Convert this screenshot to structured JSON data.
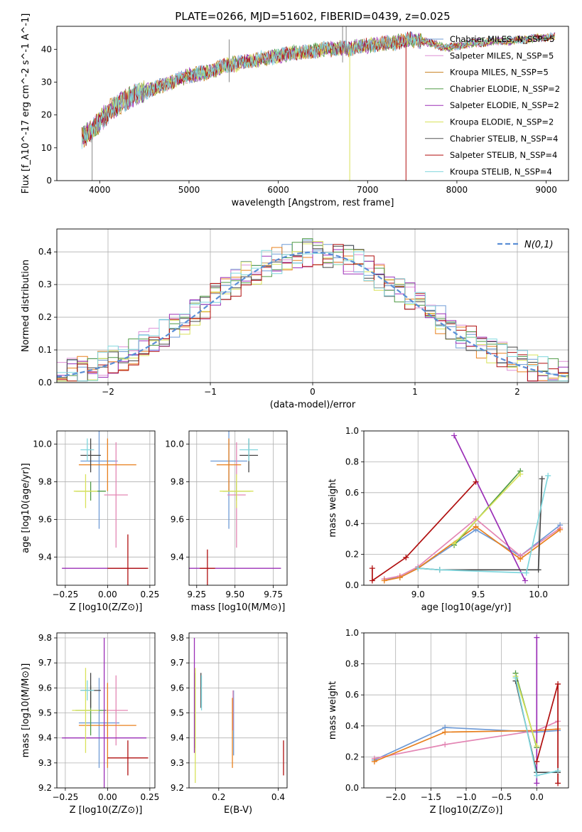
{
  "title": "PLATE=0266, MJD=51602, FIBERID=0439, z=0.025",
  "colors": [
    "#6f9bd6",
    "#dd8fd6",
    "#c8801f",
    "#4f9a45",
    "#9b2fb7",
    "#d8e25a",
    "#444444",
    "#b00f0f",
    "#7fd6dd",
    "#e8801e",
    "#e386b4"
  ],
  "chart_data": [
    {
      "id": "spectrum",
      "type": "line",
      "xlabel": "wavelength [Angstrom, rest frame]",
      "ylabel": "Flux [f_λ10^-17 erg cm^-2 s^-1 A^-1]",
      "xlim": [
        3520,
        9250
      ],
      "ylim": [
        0,
        47
      ],
      "xticks": [
        4000,
        5000,
        6000,
        7000,
        8000,
        9000
      ],
      "yticks": [
        0,
        10,
        20,
        30,
        40
      ],
      "grid": false,
      "legend_position": "right",
      "legend": [
        "Chabrier MILES, N_SSP=5",
        "Salpeter MILES, N_SSP=5",
        "Kroupa MILES, N_SSP=5",
        "Chabrier ELODIE, N_SSP=2",
        "Salpeter ELODIE, N_SSP=2",
        "Kroupa ELODIE, N_SSP=2",
        "Chabrier STELIB, N_SSP=4",
        "Salpeter STELIB, N_SSP=4",
        "Kroupa STELIB, N_SSP=4"
      ],
      "series_x": [
        3800,
        3900,
        4000,
        4100,
        4200,
        4300,
        4400,
        4500,
        4600,
        4700,
        4800,
        4900,
        5000,
        5100,
        5200,
        5300,
        5400,
        5500,
        5600,
        5700,
        5800,
        5900,
        6000,
        6100,
        6200,
        6300,
        6400,
        6500,
        6600,
        6700,
        6800,
        6900,
        7000,
        7100,
        7200,
        7300,
        7400,
        7500,
        7600,
        7700,
        7800,
        7900,
        8000,
        8100,
        8200,
        8300,
        8400,
        8500,
        8600,
        8700,
        8800,
        8900,
        9000,
        9100
      ],
      "series_y": [
        13,
        15,
        18,
        21,
        23,
        25,
        26,
        27,
        28,
        29,
        30,
        31,
        32,
        32.5,
        33,
        34,
        35,
        35.5,
        36,
        36.5,
        37,
        37.5,
        38,
        38.5,
        39,
        39,
        39.5,
        40,
        40,
        40.5,
        40,
        41,
        41,
        41.5,
        42,
        42,
        42.5,
        43,
        42.5,
        42,
        41,
        40.5,
        41,
        41.5,
        42,
        42,
        42.5,
        42.5,
        42.5,
        43,
        43,
        43.5,
        43.5,
        44
      ],
      "annotations_spikes": [
        {
          "x": 5450,
          "y_top": 43,
          "y_bottom": 30
        },
        {
          "x": 6720,
          "y_top": 47,
          "y_bottom": 36
        },
        {
          "x": 6760,
          "y_top": 47,
          "y_bottom": 38
        },
        {
          "x": 6800,
          "y_top": 40,
          "y_bottom": 0
        },
        {
          "x": 7430,
          "y_top": 42,
          "y_bottom": 0
        },
        {
          "x": 3915,
          "y_top": 14,
          "y_bottom": 0
        }
      ]
    },
    {
      "id": "residuals",
      "type": "line",
      "xlabel": "(data-model)/error",
      "ylabel": "Normed distribution",
      "xlim": [
        -2.5,
        2.5
      ],
      "ylim": [
        0,
        0.47
      ],
      "xticks": [
        -2,
        -1,
        0,
        1,
        2
      ],
      "yticks": [
        0.0,
        0.1,
        0.2,
        0.3,
        0.4
      ],
      "grid": true,
      "legend_position": "top-right",
      "legend": [
        "N(0,1)"
      ]
    },
    {
      "id": "age_vs_Z",
      "type": "scatter",
      "xlabel": "Z [log10(Z/Z⊙)]",
      "ylabel": "age  [log10(age/yr)]",
      "xlim": [
        -0.3,
        0.28
      ],
      "ylim": [
        9.25,
        10.07
      ],
      "xticks": [
        -0.25,
        0.0,
        0.25
      ],
      "yticks": [
        9.4,
        9.6,
        9.8,
        10.0
      ],
      "grid": true,
      "points": [
        {
          "x": -0.05,
          "y": 9.91,
          "xerr": 0.11,
          "yerr": 0.36,
          "color": "#6f9bd6"
        },
        {
          "x": 0.05,
          "y": 9.73,
          "xerr": 0.07,
          "yerr": 0.28,
          "color": "#e386b4"
        },
        {
          "x": 0.0,
          "y": 9.89,
          "xerr": 0.17,
          "yerr": 0.14,
          "color": "#e8801e"
        },
        {
          "x": -0.1,
          "y": 9.75,
          "xerr": 0.09,
          "yerr": 0.05,
          "color": "#4f9a45"
        },
        {
          "x": -0.02,
          "y": 9.34,
          "xerr": 0.25,
          "yerr": 0.0,
          "color": "#9b2fb7"
        },
        {
          "x": -0.13,
          "y": 9.75,
          "xerr": 0.07,
          "yerr": 0.09,
          "color": "#d8e25a"
        },
        {
          "x": -0.1,
          "y": 9.94,
          "xerr": 0.06,
          "yerr": 0.09,
          "color": "#444444"
        },
        {
          "x": 0.12,
          "y": 9.34,
          "xerr": 0.12,
          "yerr": 0.18,
          "color": "#b00f0f"
        },
        {
          "x": -0.12,
          "y": 9.97,
          "xerr": 0.04,
          "yerr": 0.06,
          "color": "#7fd6dd"
        }
      ]
    },
    {
      "id": "age_vs_mass",
      "type": "scatter",
      "xlabel": "mass [log10(M/M⊙)]",
      "ylabel": "",
      "xlim": [
        9.2,
        9.84
      ],
      "ylim": [
        9.25,
        10.07
      ],
      "xticks": [
        9.25,
        9.5,
        9.75
      ],
      "yticks": [
        9.4,
        9.6,
        9.8,
        10.0
      ],
      "grid": true,
      "points": [
        {
          "x": 9.46,
          "y": 9.91,
          "xerr": 0.12,
          "yerr": 0.36,
          "color": "#6f9bd6"
        },
        {
          "x": 9.51,
          "y": 9.73,
          "xerr": 0.06,
          "yerr": 0.28,
          "color": "#e386b4"
        },
        {
          "x": 9.46,
          "y": 9.89,
          "xerr": 0.08,
          "yerr": 0.14,
          "color": "#e8801e"
        },
        {
          "x": 9.51,
          "y": 9.75,
          "xerr": 0.09,
          "yerr": 0.05,
          "color": "#4f9a45"
        },
        {
          "x": 9.4,
          "y": 9.34,
          "xerr": 0.4,
          "yerr": 0.0,
          "color": "#9b2fb7"
        },
        {
          "x": 9.51,
          "y": 9.75,
          "xerr": 0.11,
          "yerr": 0.09,
          "color": "#d8e25a"
        },
        {
          "x": 9.59,
          "y": 9.94,
          "xerr": 0.06,
          "yerr": 0.09,
          "color": "#444444"
        },
        {
          "x": 9.32,
          "y": 9.34,
          "xerr": 0.05,
          "yerr": 0.1,
          "color": "#b00f0f"
        },
        {
          "x": 9.59,
          "y": 9.97,
          "xerr": 0.06,
          "yerr": 0.06,
          "color": "#7fd6dd"
        }
      ]
    },
    {
      "id": "weight_vs_age",
      "type": "line",
      "xlabel": "age  [log10(age/yr)]",
      "ylabel": "mass weight",
      "xlim": [
        8.55,
        10.25
      ],
      "ylim": [
        0,
        1.0
      ],
      "xticks": [
        9.0,
        9.5,
        10.0
      ],
      "yticks": [
        0.0,
        0.2,
        0.4,
        0.6,
        0.8,
        1.0
      ],
      "grid": true,
      "series": [
        {
          "color": "#6f9bd6",
          "x": [
            8.72,
            8.85,
            9.0,
            9.48,
            9.85,
            10.18
          ],
          "y": [
            0.04,
            0.05,
            0.11,
            0.36,
            0.19,
            0.39
          ]
        },
        {
          "color": "#e386b4",
          "x": [
            8.72,
            8.85,
            9.0,
            9.48,
            9.85,
            10.18
          ],
          "y": [
            0.04,
            0.06,
            0.12,
            0.43,
            0.19,
            0.37
          ]
        },
        {
          "color": "#e8801e",
          "x": [
            8.72,
            8.85,
            9.0,
            9.48,
            9.85,
            10.18
          ],
          "y": [
            0.03,
            0.05,
            0.11,
            0.38,
            0.17,
            0.36
          ]
        },
        {
          "color": "#4f9a45",
          "x": [
            9.3,
            9.85
          ],
          "y": [
            0.26,
            0.74
          ]
        },
        {
          "color": "#9b2fb7",
          "x": [
            9.3,
            9.89
          ],
          "y": [
            0.97,
            0.03
          ]
        },
        {
          "color": "#d8e25a",
          "x": [
            9.3,
            9.85
          ],
          "y": [
            0.27,
            0.72
          ]
        },
        {
          "color": "#444444",
          "x": [
            9.0,
            9.18,
            10.0,
            10.03
          ],
          "y": [
            0.11,
            0.1,
            0.1,
            0.69
          ]
        },
        {
          "color": "#b00f0f",
          "x": [
            8.62,
            8.62,
            8.9,
            9.48
          ],
          "y": [
            0.11,
            0.03,
            0.18,
            0.67
          ]
        },
        {
          "color": "#7fd6dd",
          "x": [
            9.0,
            9.18,
            9.9,
            10.08
          ],
          "y": [
            0.11,
            0.1,
            0.08,
            0.71
          ]
        }
      ]
    },
    {
      "id": "mass_vs_Z",
      "type": "scatter",
      "xlabel": "Z [log10(Z/Z⊙)]",
      "ylabel": "mass [log10(M/M⊙)]",
      "xlim": [
        -0.3,
        0.28
      ],
      "ylim": [
        9.2,
        9.82
      ],
      "xticks": [
        -0.25,
        0.0,
        0.25
      ],
      "yticks": [
        9.2,
        9.3,
        9.4,
        9.5,
        9.6,
        9.7,
        9.8
      ],
      "grid": true,
      "points": [
        {
          "x": -0.05,
          "y": 9.46,
          "xerr": 0.12,
          "yerr": 0.18,
          "color": "#6f9bd6"
        },
        {
          "x": 0.05,
          "y": 9.51,
          "xerr": 0.07,
          "yerr": 0.14,
          "color": "#e386b4"
        },
        {
          "x": 0.0,
          "y": 9.45,
          "xerr": 0.17,
          "yerr": 0.17,
          "color": "#e8801e"
        },
        {
          "x": -0.1,
          "y": 9.51,
          "xerr": 0.09,
          "yerr": 0.1,
          "color": "#4f9a45"
        },
        {
          "x": -0.02,
          "y": 9.4,
          "xerr": 0.25,
          "yerr": 0.4,
          "color": "#9b2fb7"
        },
        {
          "x": -0.13,
          "y": 9.51,
          "xerr": 0.08,
          "yerr": 0.17,
          "color": "#d8e25a"
        },
        {
          "x": -0.1,
          "y": 9.59,
          "xerr": 0.06,
          "yerr": 0.07,
          "color": "#444444"
        },
        {
          "x": 0.12,
          "y": 9.32,
          "xerr": 0.12,
          "yerr": 0.07,
          "color": "#b00f0f"
        },
        {
          "x": -0.12,
          "y": 9.59,
          "xerr": 0.04,
          "yerr": 0.04,
          "color": "#7fd6dd"
        }
      ]
    },
    {
      "id": "mass_vs_ebv",
      "type": "scatter",
      "xlabel": "E(B-V)",
      "ylabel": "",
      "xlim": [
        0.1,
        0.43
      ],
      "ylim": [
        9.2,
        9.82
      ],
      "xticks": [
        0.2,
        0.4
      ],
      "yticks": [
        9.2,
        9.3,
        9.4,
        9.5,
        9.6,
        9.7,
        9.8
      ],
      "grid": true,
      "points": [
        {
          "x": 0.25,
          "y": 9.46,
          "xerr": 0.0,
          "yerr": 0.13,
          "color": "#6f9bd6"
        },
        {
          "x": 0.248,
          "y": 9.51,
          "xerr": 0.0,
          "yerr": 0.08,
          "color": "#e386b4"
        },
        {
          "x": 0.246,
          "y": 9.42,
          "xerr": 0.0,
          "yerr": 0.14,
          "color": "#e8801e"
        },
        {
          "x": 0.12,
          "y": 9.51,
          "xerr": 0.0,
          "yerr": 0.15,
          "color": "#4f9a45"
        },
        {
          "x": 0.118,
          "y": 9.57,
          "xerr": 0.0,
          "yerr": 0.23,
          "color": "#9b2fb7"
        },
        {
          "x": 0.121,
          "y": 9.45,
          "xerr": 0.0,
          "yerr": 0.23,
          "color": "#d8e25a"
        },
        {
          "x": 0.14,
          "y": 9.59,
          "xerr": 0.0,
          "yerr": 0.07,
          "color": "#444444"
        },
        {
          "x": 0.418,
          "y": 9.32,
          "xerr": 0.0,
          "yerr": 0.07,
          "color": "#b00f0f"
        },
        {
          "x": 0.142,
          "y": 9.58,
          "xerr": 0.0,
          "yerr": 0.07,
          "color": "#7fd6dd"
        }
      ]
    },
    {
      "id": "weight_vs_Z",
      "type": "line",
      "xlabel": "Z [log10(Z/Z⊙)]",
      "ylabel": "mass weight",
      "xlim": [
        -2.45,
        0.45
      ],
      "ylim": [
        0,
        1.0
      ],
      "xticks": [
        -2.0,
        -1.5,
        -1.0,
        -0.5,
        0.0
      ],
      "yticks": [
        0.0,
        0.2,
        0.4,
        0.6,
        0.8,
        1.0
      ],
      "grid": true,
      "series": [
        {
          "color": "#6f9bd6",
          "x": [
            -2.3,
            -1.3,
            0.0,
            0.3
          ],
          "y": [
            0.18,
            0.39,
            0.36,
            0.37
          ]
        },
        {
          "color": "#e386b4",
          "x": [
            -2.3,
            -1.3,
            0.0,
            0.3
          ],
          "y": [
            0.19,
            0.28,
            0.37,
            0.43
          ]
        },
        {
          "color": "#e8801e",
          "x": [
            -2.3,
            -1.3,
            0.0,
            0.3
          ],
          "y": [
            0.17,
            0.36,
            0.37,
            0.38
          ]
        },
        {
          "color": "#4f9a45",
          "x": [
            -0.3,
            0.0
          ],
          "y": [
            0.74,
            0.26
          ]
        },
        {
          "color": "#9b2fb7",
          "x": [
            0.0,
            0.0
          ],
          "y": [
            0.97,
            0.03
          ]
        },
        {
          "color": "#d8e25a",
          "x": [
            -0.3,
            0.0
          ],
          "y": [
            0.72,
            0.27
          ]
        },
        {
          "color": "#444444",
          "x": [
            -0.3,
            0.0,
            0.3
          ],
          "y": [
            0.69,
            0.1,
            0.1
          ]
        },
        {
          "color": "#b00f0f",
          "x": [
            0.0,
            0.3,
            0.3
          ],
          "y": [
            0.17,
            0.67,
            0.03
          ]
        },
        {
          "color": "#7fd6dd",
          "x": [
            -0.3,
            0.0,
            0.3
          ],
          "y": [
            0.71,
            0.08,
            0.11
          ]
        }
      ]
    }
  ]
}
